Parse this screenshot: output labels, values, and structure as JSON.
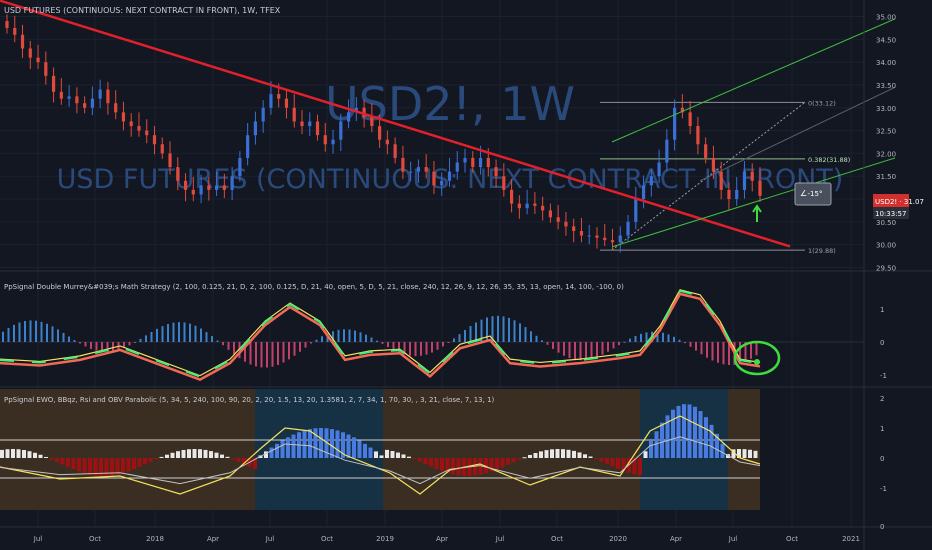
{
  "header": {
    "title": "USD FUTURES (CONTINUOUS: NEXT CONTRACT IN FRONT), 1W, TFEX"
  },
  "watermark": {
    "symbol": "USD2!, 1W",
    "description": "USD FUTURES (CONTINUOUS: NEXT CONTRACT IN FRONT)"
  },
  "colors": {
    "background": "#131722",
    "up": "#3a6fd8",
    "down": "#e24a3b",
    "trendline": "#e0202a",
    "channel": "#3fbf3f",
    "fib": "#8a8f9a",
    "price_tag": "#d32f2f",
    "wave_green": "#3ef07a",
    "wave_yellow": "#f5e35d",
    "wave_red": "#f26a55",
    "hist_blue": "#3c82c8",
    "hist_pink": "#c2406a"
  },
  "price_axis": {
    "ticks": [
      "35.00",
      "34.50",
      "34.00",
      "33.50",
      "33.00",
      "32.50",
      "32.00",
      "31.50",
      "31.00",
      "30.50",
      "30.00",
      "29.50"
    ],
    "last_label": "USD2! · 31.07",
    "countdown": "10:33:57"
  },
  "time_axis": {
    "ticks": [
      "Jul",
      "Oct",
      "2018",
      "Apr",
      "Jul",
      "Oct",
      "2019",
      "Apr",
      "Jul",
      "Oct",
      "2020",
      "Apr",
      "Jul",
      "Oct",
      "2021"
    ]
  },
  "fib_levels": [
    {
      "label": "0(33.12)",
      "price": 33.12
    },
    {
      "label": "0.382(31.88)",
      "price": 31.88
    },
    {
      "label": "(31.12)",
      "price": 31.12
    },
    {
      "label": "1(29.88)",
      "price": 29.88
    }
  ],
  "angle_tag": "-15°",
  "panel1": {
    "title": "PpSignal Double Murrey&#039;s Math Strategy (2, 100, 0.125, 21, D, 2, 100, 0.125, D, 21, 40, open, 5, D, 5, 21, close, 240, 12, 26, 9, 12, 26, 35, 35, 13, open, 14, 100, -100, 0)",
    "ticks": [
      "1",
      "0",
      "-1"
    ]
  },
  "panel2": {
    "title": "PpSignal  EWO,  BBqz, Rsi and OBV Parabolic (5, 34, 5, 240, 100, 90, 20, 2, 20, 1.5, 13, 20, 1.3581, 2, 7, 34, 1, 70, 30, , 3, 21, close, 7, 13, 1)",
    "ticks": [
      "2",
      "1",
      "0",
      "-1"
    ],
    "extra_tick": "0"
  },
  "chart_data": {
    "type": "candlestick",
    "title": "USD FUTURES (CONTINUOUS: NEXT CONTRACT IN FRONT), 1W, TFEX",
    "ylim": [
      29.4,
      35.1
    ],
    "x_range": [
      "2017-05",
      "2021-02"
    ],
    "close_series": [
      34.75,
      34.6,
      34.3,
      34.1,
      34.0,
      33.7,
      33.35,
      33.2,
      33.25,
      33.1,
      33.0,
      33.2,
      33.4,
      33.1,
      32.9,
      32.7,
      32.6,
      32.5,
      32.4,
      32.2,
      32.0,
      31.7,
      31.4,
      31.2,
      31.1,
      31.3,
      31.2,
      31.3,
      31.2,
      31.5,
      31.9,
      32.4,
      32.7,
      33.0,
      33.3,
      33.2,
      33.0,
      32.7,
      32.6,
      32.7,
      32.4,
      32.2,
      32.3,
      32.7,
      32.9,
      33.0,
      32.8,
      32.6,
      32.3,
      32.2,
      31.9,
      31.6,
      31.6,
      31.7,
      31.6,
      31.3,
      31.4,
      31.6,
      31.8,
      31.9,
      31.7,
      31.9,
      31.7,
      31.5,
      31.2,
      30.9,
      30.8,
      30.9,
      30.85,
      30.75,
      30.6,
      30.5,
      30.4,
      30.3,
      30.2,
      30.2,
      30.15,
      30.1,
      30.05,
      30.2,
      30.5,
      31.0,
      31.3,
      31.5,
      31.8,
      32.3,
      33.0,
      32.9,
      32.6,
      32.2,
      31.9,
      31.6,
      31.2,
      31.0,
      31.2,
      31.6,
      31.4,
      31.07
    ],
    "trendline": [
      [
        "2017-05",
        35.3
      ],
      [
        "2020-10",
        29.95
      ]
    ],
    "channel": {
      "lower": [
        [
          "2019-12",
          29.9
        ],
        [
          "2021-02",
          32.0
        ]
      ],
      "middle": [
        [
          "2019-12",
          30.7
        ],
        [
          "2021-02",
          33.4
        ]
      ],
      "upper": [
        [
          "2019-12",
          31.8
        ],
        [
          "2021-02",
          35.0
        ]
      ]
    }
  }
}
